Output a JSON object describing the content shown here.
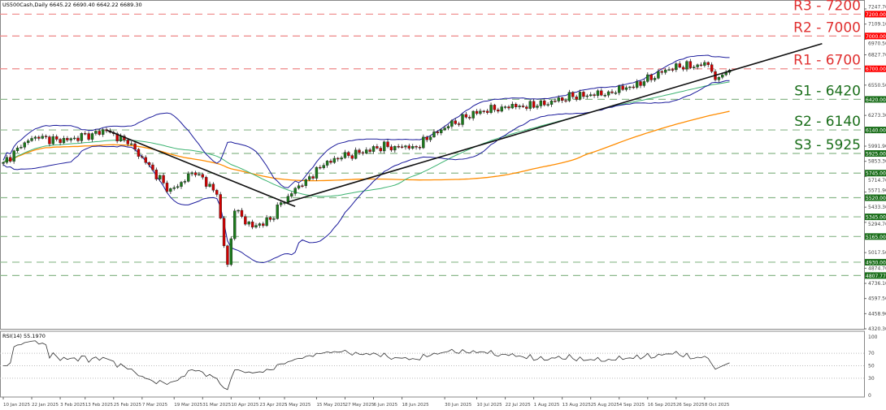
{
  "header": {
    "symbol": "US500Cash,Daily",
    "ohlc": "6645.22 6690.40 6642.22 6689.30"
  },
  "rsi": {
    "label": "RSI(14) 55.1970",
    "ticks": [
      "100",
      "70",
      "50",
      "30",
      "0"
    ]
  },
  "colors": {
    "up": "#1b7a1b",
    "down": "#d00000",
    "resistance": "#e03030",
    "support": "#1a6e1a",
    "bands": "#1c1c9c",
    "ma_fast": "#3cb371",
    "ma_slow": "#ff8c00"
  },
  "chart_data": {
    "type": "candlestick",
    "title": "US500Cash,Daily",
    "ylim": [
      4320.3,
      7247.7
    ],
    "y_ticks": [
      "7247.70",
      "7109.10",
      "6970.50",
      "6827.70",
      "6550.50",
      "6273.30",
      "5991.90",
      "5853.30",
      "5714.70",
      "5571.90",
      "5433.30",
      "5294.70",
      "5017.50",
      "4874.70",
      "4736.10",
      "4597.50",
      "4458.90",
      "4320.30"
    ],
    "x_ticks": [
      {
        "i": 0,
        "label": "10 Jan 2025"
      },
      {
        "i": 8,
        "label": "22 Jan 2025"
      },
      {
        "i": 16,
        "label": "3 Feb 2025"
      },
      {
        "i": 23,
        "label": "13 Feb 2025"
      },
      {
        "i": 31,
        "label": "25 Feb 2025"
      },
      {
        "i": 39,
        "label": "7 Mar 2025"
      },
      {
        "i": 48,
        "label": "19 Mar 2025"
      },
      {
        "i": 56,
        "label": "31 Mar 2025"
      },
      {
        "i": 64,
        "label": "10 Apr 2025"
      },
      {
        "i": 72,
        "label": "23 Apr 2025"
      },
      {
        "i": 79,
        "label": "5 May 2025"
      },
      {
        "i": 88,
        "label": "15 May 2025"
      },
      {
        "i": 96,
        "label": "27 May 2025"
      },
      {
        "i": 104,
        "label": "6 Jun 2025"
      },
      {
        "i": 112,
        "label": "18 Jun 2025"
      },
      {
        "i": 124,
        "label": "30 Jun 2025"
      },
      {
        "i": 133,
        "label": "10 Jul 2025"
      },
      {
        "i": 141,
        "label": "22 Jul 2025"
      },
      {
        "i": 149,
        "label": "1 Aug 2025"
      },
      {
        "i": 157,
        "label": "13 Aug 2025"
      },
      {
        "i": 165,
        "label": "25 Aug 2025"
      },
      {
        "i": 173,
        "label": "4 Sep 2025"
      },
      {
        "i": 181,
        "label": "16 Sep 2025"
      },
      {
        "i": 189,
        "label": "26 Sep 2025"
      },
      {
        "i": 197,
        "label": "8 Oct 2025"
      }
    ],
    "close_keypoints": [
      [
        0,
        5843
      ],
      [
        8,
        6066
      ],
      [
        18,
        6050
      ],
      [
        29,
        6140
      ],
      [
        36,
        5990
      ],
      [
        43,
        5730
      ],
      [
        47,
        5580
      ],
      [
        54,
        5770
      ],
      [
        60,
        5550
      ],
      [
        63,
        4880
      ],
      [
        65,
        5400
      ],
      [
        70,
        5250
      ],
      [
        75,
        5320
      ],
      [
        78,
        5470
      ],
      [
        84,
        5660
      ],
      [
        91,
        5843
      ],
      [
        98,
        5917
      ],
      [
        107,
        5990
      ],
      [
        116,
        5990
      ],
      [
        123,
        6140
      ],
      [
        132,
        6290
      ],
      [
        141,
        6360
      ],
      [
        150,
        6360
      ],
      [
        159,
        6440
      ],
      [
        168,
        6475
      ],
      [
        178,
        6550
      ],
      [
        187,
        6700
      ],
      [
        198,
        6750
      ],
      [
        200,
        6600
      ],
      [
        202,
        6645
      ],
      [
        204,
        6689
      ]
    ],
    "levels": [
      {
        "label": "R3 - 7200",
        "value": 7200,
        "tag": "7200.00",
        "type": "resistance"
      },
      {
        "label": "R2 - 7000",
        "value": 7000,
        "tag": "7000.00",
        "type": "resistance"
      },
      {
        "label": "R1 - 6700",
        "value": 6700,
        "tag": "6700.00",
        "type": "resistance"
      },
      {
        "label": "S1 - 6420",
        "value": 6420,
        "tag": "6420.00",
        "type": "support"
      },
      {
        "label": "S2 - 6140",
        "value": 6140,
        "tag": "6140.00",
        "type": "support"
      },
      {
        "label": "S3 - 5925",
        "value": 5925,
        "tag": "5925.00",
        "type": "support"
      },
      {
        "label": "",
        "value": 5745,
        "tag": "5745.00",
        "type": "support"
      },
      {
        "label": "",
        "value": 5520,
        "tag": "5520.00",
        "type": "support"
      },
      {
        "label": "",
        "value": 5345,
        "tag": "5345.00",
        "type": "support"
      },
      {
        "label": "",
        "value": 5165,
        "tag": "5165.00",
        "type": "support"
      },
      {
        "label": "",
        "value": 4930,
        "tag": "4930.00",
        "type": "support"
      },
      {
        "label": "",
        "value": 4807.77,
        "tag": "4807.77",
        "type": "support"
      }
    ],
    "trendlines": [
      [
        [
          29,
          6140
        ],
        [
          82,
          5440
        ]
      ],
      [
        [
          80,
          5480
        ],
        [
          230,
          6930
        ]
      ]
    ]
  }
}
